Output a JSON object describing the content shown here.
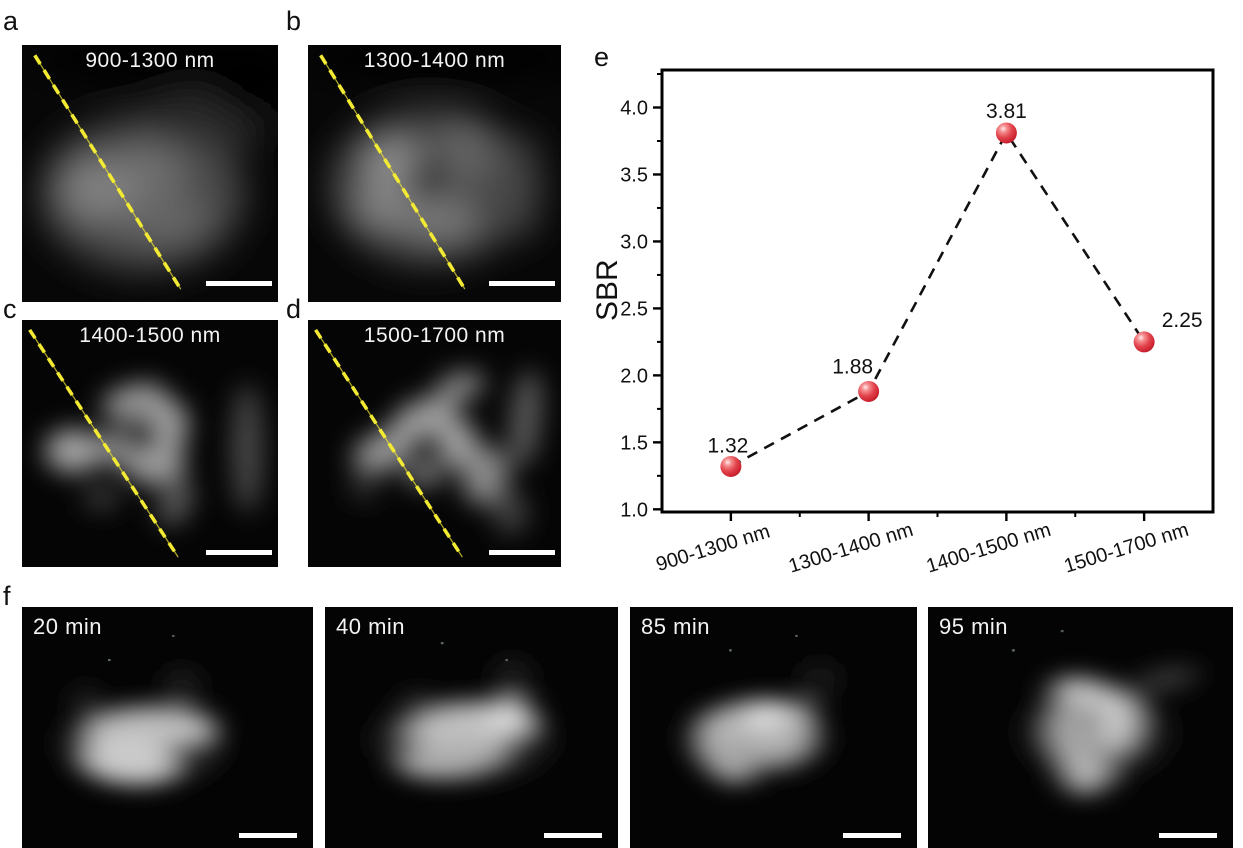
{
  "figure": {
    "panels": {
      "a": {
        "letter": "a",
        "label": "900-1300 nm"
      },
      "b": {
        "letter": "b",
        "label": "1300-1400 nm"
      },
      "c": {
        "letter": "c",
        "label": "1400-1500 nm"
      },
      "d": {
        "letter": "d",
        "label": "1500-1700 nm"
      },
      "e": {
        "letter": "e"
      },
      "f": {
        "letter": "f",
        "times": [
          "20 min",
          "40 min",
          "85 min",
          "95 min"
        ]
      }
    }
  },
  "chart_data": {
    "type": "line",
    "categories": [
      "900-1300 nm",
      "1300-1400 nm",
      "1400-1500 nm",
      "1500-1700 nm"
    ],
    "values": [
      1.32,
      1.88,
      3.81,
      2.25
    ],
    "point_labels": [
      "1.32",
      "1.88",
      "3.81",
      "2.25"
    ],
    "title": "",
    "xlabel": "",
    "ylabel": "SBR",
    "yticks": [
      1.0,
      1.5,
      2.0,
      2.5,
      3.0,
      3.5,
      4.0
    ],
    "minor_ytick_step": 0.25,
    "ylim": [
      0.98,
      4.28
    ],
    "grid": false,
    "legend": "none",
    "line_style": "dashed",
    "line_color": "#111111",
    "marker": "sphere",
    "marker_color": "#d6232e",
    "accent_yellow": "#f3ea33"
  }
}
